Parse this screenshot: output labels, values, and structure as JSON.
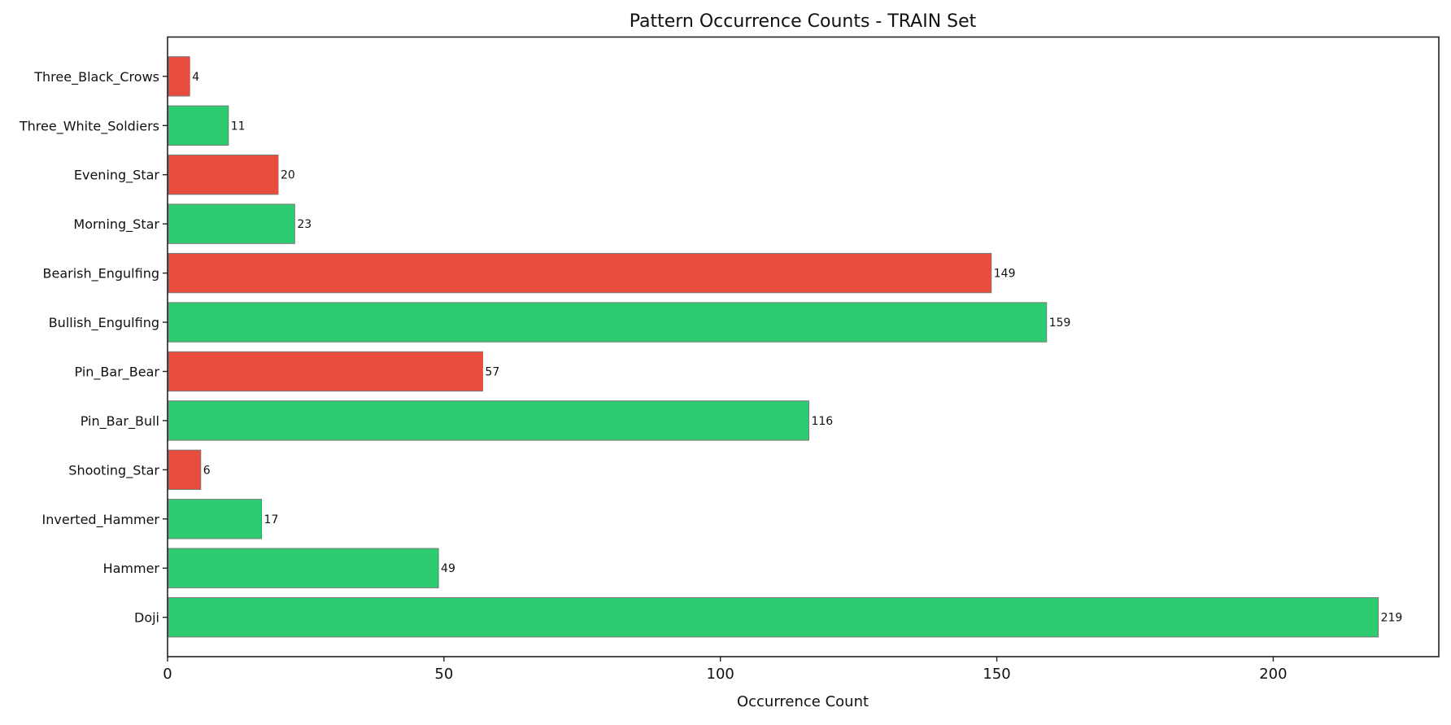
{
  "chart_data": {
    "type": "bar",
    "orientation": "horizontal",
    "title": "Pattern Occurrence Counts - TRAIN Set",
    "xlabel": "Occurrence Count",
    "ylabel": "",
    "xlim": [
      0,
      229.95
    ],
    "xticks": [
      0,
      50,
      100,
      150,
      200
    ],
    "grid": false,
    "categories": [
      "Doji",
      "Hammer",
      "Inverted_Hammer",
      "Shooting_Star",
      "Pin_Bar_Bull",
      "Pin_Bar_Bear",
      "Bullish_Engulfing",
      "Bearish_Engulfing",
      "Morning_Star",
      "Evening_Star",
      "Three_White_Soldiers",
      "Three_Black_Crows"
    ],
    "values": [
      219,
      49,
      17,
      6,
      116,
      57,
      159,
      149,
      23,
      20,
      11,
      4
    ],
    "bar_colors": [
      "#2ecc71",
      "#2ecc71",
      "#2ecc71",
      "#e74c3c",
      "#2ecc71",
      "#e74c3c",
      "#2ecc71",
      "#e74c3c",
      "#2ecc71",
      "#e74c3c",
      "#2ecc71",
      "#e74c3c"
    ],
    "edge_color": "#777777"
  }
}
